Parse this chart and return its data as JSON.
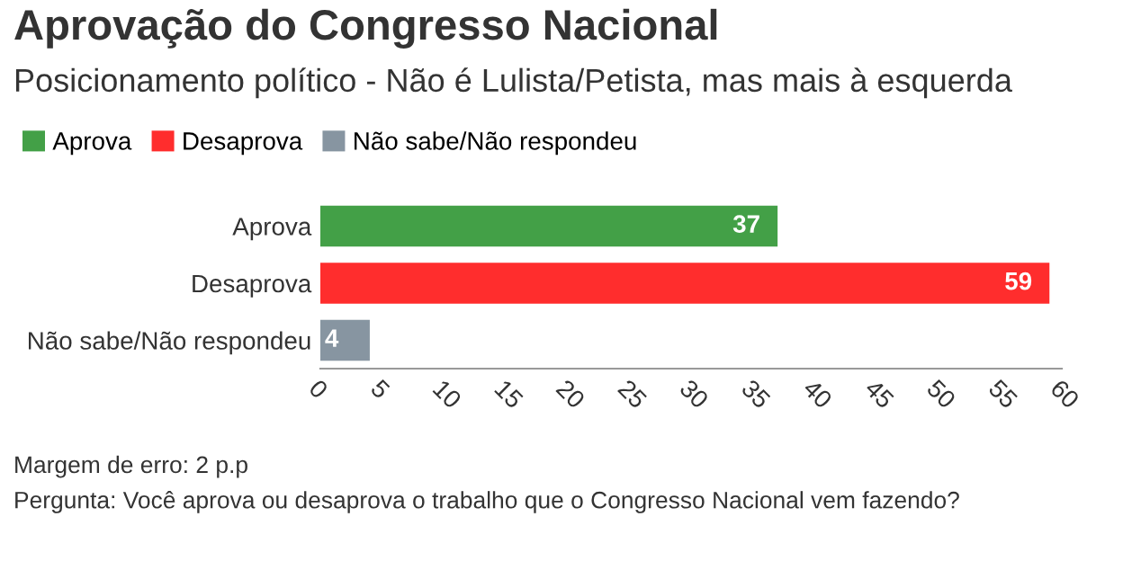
{
  "chart_data": {
    "type": "bar",
    "orientation": "horizontal",
    "title": "Aprovação do Congresso Nacional",
    "subtitle": "Posicionamento político - Não é Lulista/Petista, mas mais à esquerda",
    "categories": [
      "Aprova",
      "Desaprova",
      "Não sabe/Não respondeu"
    ],
    "series": [
      {
        "name": "Aprova",
        "color": "#43a047",
        "values": [
          37,
          null,
          null
        ]
      },
      {
        "name": "Desaprova",
        "color": "#ff2d2d",
        "values": [
          null,
          59,
          null
        ]
      },
      {
        "name": "Não sabe/Não respondeu",
        "color": "#8795a1",
        "values": [
          null,
          null,
          4
        ]
      }
    ],
    "xlim": [
      0,
      60
    ],
    "xticks": [
      0,
      5,
      10,
      15,
      20,
      25,
      30,
      35,
      40,
      45,
      50,
      55,
      60
    ],
    "data_labels": true,
    "legend": "top left",
    "grid": false,
    "annotations": [
      "Margem de erro: 2 p.p",
      "Pergunta: Você aprova ou desaprova o trabalho que o Congresso Nacional vem fazendo?"
    ]
  }
}
